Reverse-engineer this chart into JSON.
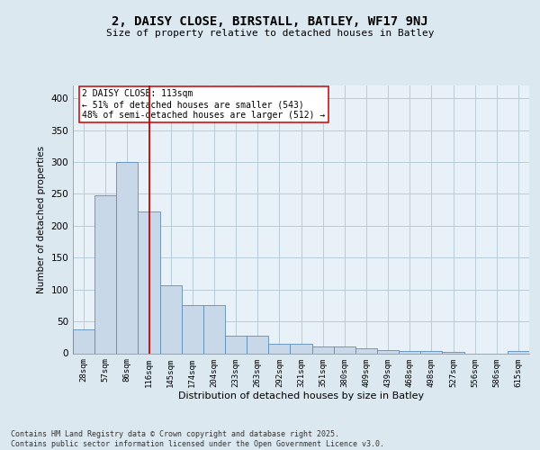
{
  "title1": "2, DAISY CLOSE, BIRSTALL, BATLEY, WF17 9NJ",
  "title2": "Size of property relative to detached houses in Batley",
  "xlabel": "Distribution of detached houses by size in Batley",
  "ylabel": "Number of detached properties",
  "bin_labels": [
    "28sqm",
    "57sqm",
    "86sqm",
    "116sqm",
    "145sqm",
    "174sqm",
    "204sqm",
    "233sqm",
    "263sqm",
    "292sqm",
    "321sqm",
    "351sqm",
    "380sqm",
    "409sqm",
    "439sqm",
    "468sqm",
    "498sqm",
    "527sqm",
    "556sqm",
    "586sqm",
    "615sqm"
  ],
  "bar_heights": [
    37,
    248,
    300,
    223,
    106,
    76,
    76,
    27,
    27,
    15,
    15,
    10,
    10,
    8,
    5,
    4,
    4,
    2,
    0,
    0,
    3
  ],
  "bar_color": "#c8d8e8",
  "bar_edge_color": "#5b8db8",
  "vline_x_index": 3,
  "vline_color": "#cc0000",
  "annotation_text": "2 DAISY CLOSE: 113sqm\n← 51% of detached houses are smaller (543)\n48% of semi-detached houses are larger (512) →",
  "annotation_box_color": "#ffffff",
  "annotation_box_edge_color": "#cc0000",
  "ylim": [
    0,
    420
  ],
  "yticks": [
    0,
    50,
    100,
    150,
    200,
    250,
    300,
    350,
    400
  ],
  "footer_text": "Contains HM Land Registry data © Crown copyright and database right 2025.\nContains public sector information licensed under the Open Government Licence v3.0.",
  "bg_color": "#dce8f0",
  "plot_bg_color": "#e8f0f8",
  "grid_color": "#b8ccd8"
}
